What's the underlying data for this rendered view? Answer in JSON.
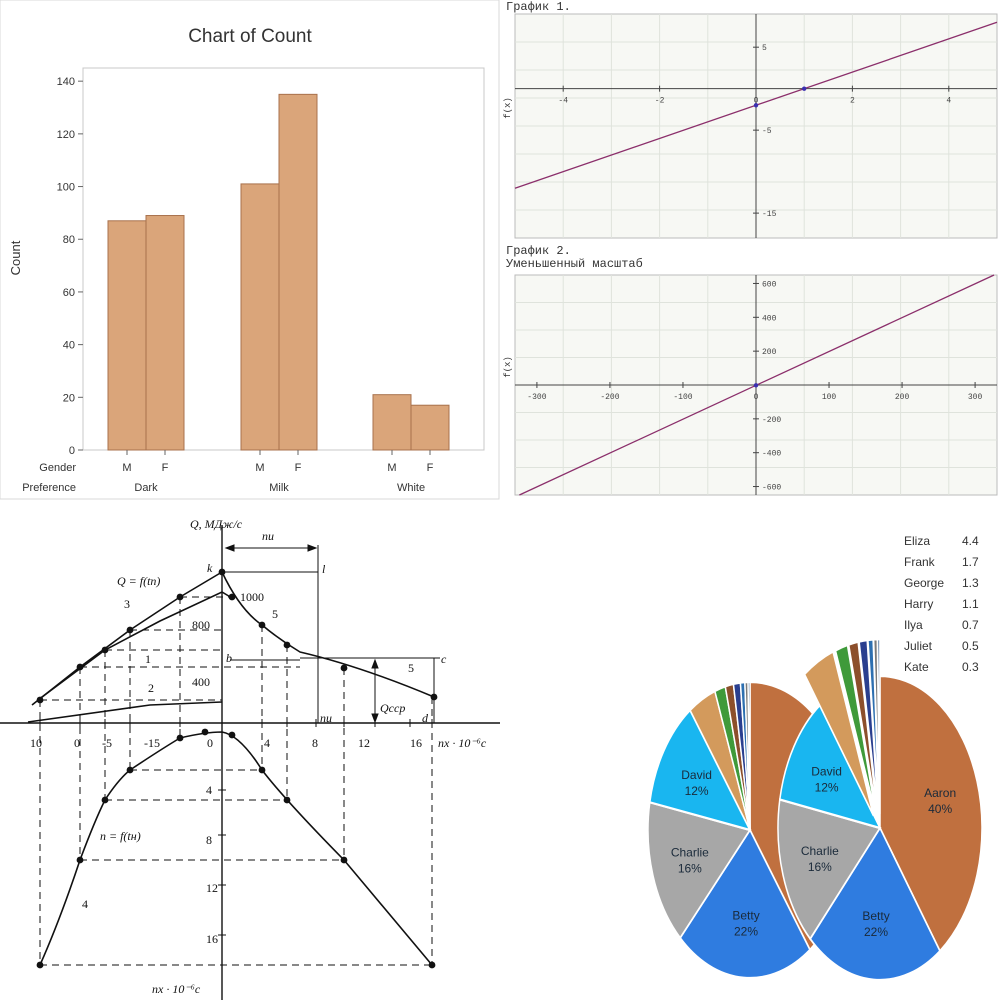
{
  "chart_data": [
    {
      "type": "bar",
      "title": "Chart of Count",
      "ylabel": "Count",
      "ylim": [
        0,
        145
      ],
      "yticks": [
        0,
        20,
        40,
        60,
        80,
        100,
        120,
        140
      ],
      "row_labels": [
        "Gender",
        "Preference"
      ],
      "groups": [
        {
          "name": "Dark",
          "bars": [
            {
              "label": "M",
              "value": 87
            },
            {
              "label": "F",
              "value": 89
            }
          ]
        },
        {
          "name": "Milk",
          "bars": [
            {
              "label": "M",
              "value": 101
            },
            {
              "label": "F",
              "value": 135
            }
          ]
        },
        {
          "name": "White",
          "bars": [
            {
              "label": "M",
              "value": 21
            },
            {
              "label": "F",
              "value": 17
            }
          ]
        }
      ],
      "bar_color": "#daa57a",
      "bar_edge": "#a8714c"
    },
    {
      "type": "line",
      "title": "График 1.",
      "ylabel": "f(x)",
      "xlim": [
        -5,
        5
      ],
      "ylim": [
        -18,
        9
      ],
      "xticks": [
        -4,
        -2,
        0,
        2,
        4
      ],
      "yticks": [
        5,
        -5,
        -15
      ],
      "line": {
        "slope": 2,
        "intercept": -2
      },
      "points": [
        {
          "x": 0,
          "y": -2
        },
        {
          "x": 1,
          "y": 0
        }
      ],
      "line_color": "#8b2f6b"
    },
    {
      "type": "line",
      "title": "График 2.",
      "subtitle": "Уменьшенный масштаб",
      "ylabel": "f(x)",
      "xlim": [
        -330,
        330
      ],
      "ylim": [
        -650,
        650
      ],
      "xticks": [
        -300,
        -200,
        -100,
        0,
        100,
        200,
        300
      ],
      "yticks": [
        600,
        400,
        200,
        -200,
        -400,
        -600
      ],
      "line": {
        "slope": 2,
        "intercept": -2
      },
      "points": [
        {
          "x": 0,
          "y": -2
        }
      ],
      "line_color": "#8b2f6b"
    },
    {
      "type": "line",
      "labels": {
        "q_axis": "Q, МДж/с",
        "q_func": "Q = f(tп)",
        "n_func": "n = f(tн)",
        "q_avg": "Qсср",
        "n_i": "nи",
        "n_i_small": "nи",
        "x_axis": "nx · 10⁻⁶c",
        "x_axis_bottom": "nx · 10⁻⁶c",
        "v1000": "1000",
        "v800": "800",
        "v400": "400",
        "k": "k",
        "l": "l",
        "b": "b",
        "c": "c",
        "d": "d",
        "c1": "1",
        "c2": "2",
        "c3": "3",
        "c4": "4",
        "c5a": "5",
        "c5b": "5"
      },
      "x_ticks_left": [
        "10",
        "0",
        "-5",
        "-15",
        "0"
      ],
      "x_ticks_right": [
        "4",
        "8",
        "12",
        "16"
      ],
      "y_ticks_down": [
        "4",
        "8",
        "12",
        "16"
      ]
    },
    {
      "type": "pie",
      "slices": [
        {
          "label": "Aaron",
          "pct": "40%",
          "value": 40,
          "color": "#c0703f"
        },
        {
          "label": "Betty",
          "pct": "22%",
          "value": 22,
          "color": "#2f7ce0"
        },
        {
          "label": "Charlie",
          "pct": "16%",
          "value": 16,
          "color": "#a7a7a7"
        },
        {
          "label": "David",
          "pct": "12%",
          "value": 12,
          "color": "#19b6f0"
        },
        {
          "label": "Eliza",
          "value": 4.4,
          "color": "#d39a5c"
        },
        {
          "label": "Frank",
          "value": 1.7,
          "color": "#3f9a3a"
        },
        {
          "label": "George",
          "value": 1.3,
          "color": "#8c4f2b"
        },
        {
          "label": "Harry",
          "value": 1.1,
          "color": "#2a3f8f"
        },
        {
          "label": "Ilya",
          "value": 0.7,
          "color": "#2d6fb0"
        },
        {
          "label": "Juliet",
          "value": 0.5,
          "color": "#7a7a7a"
        },
        {
          "label": "Kate",
          "value": 0.3,
          "color": "#1e4f86"
        }
      ],
      "legend": [
        {
          "name": "Eliza",
          "value": "4.4"
        },
        {
          "name": "Frank",
          "value": "1.7"
        },
        {
          "name": "George",
          "value": "1.3"
        },
        {
          "name": "Harry",
          "value": "1.1"
        },
        {
          "name": "Ilya",
          "value": "0.7"
        },
        {
          "name": "Juliet",
          "value": "0.5"
        },
        {
          "name": "Kate",
          "value": "0.3"
        }
      ],
      "legend_placement": "top-right"
    }
  ]
}
